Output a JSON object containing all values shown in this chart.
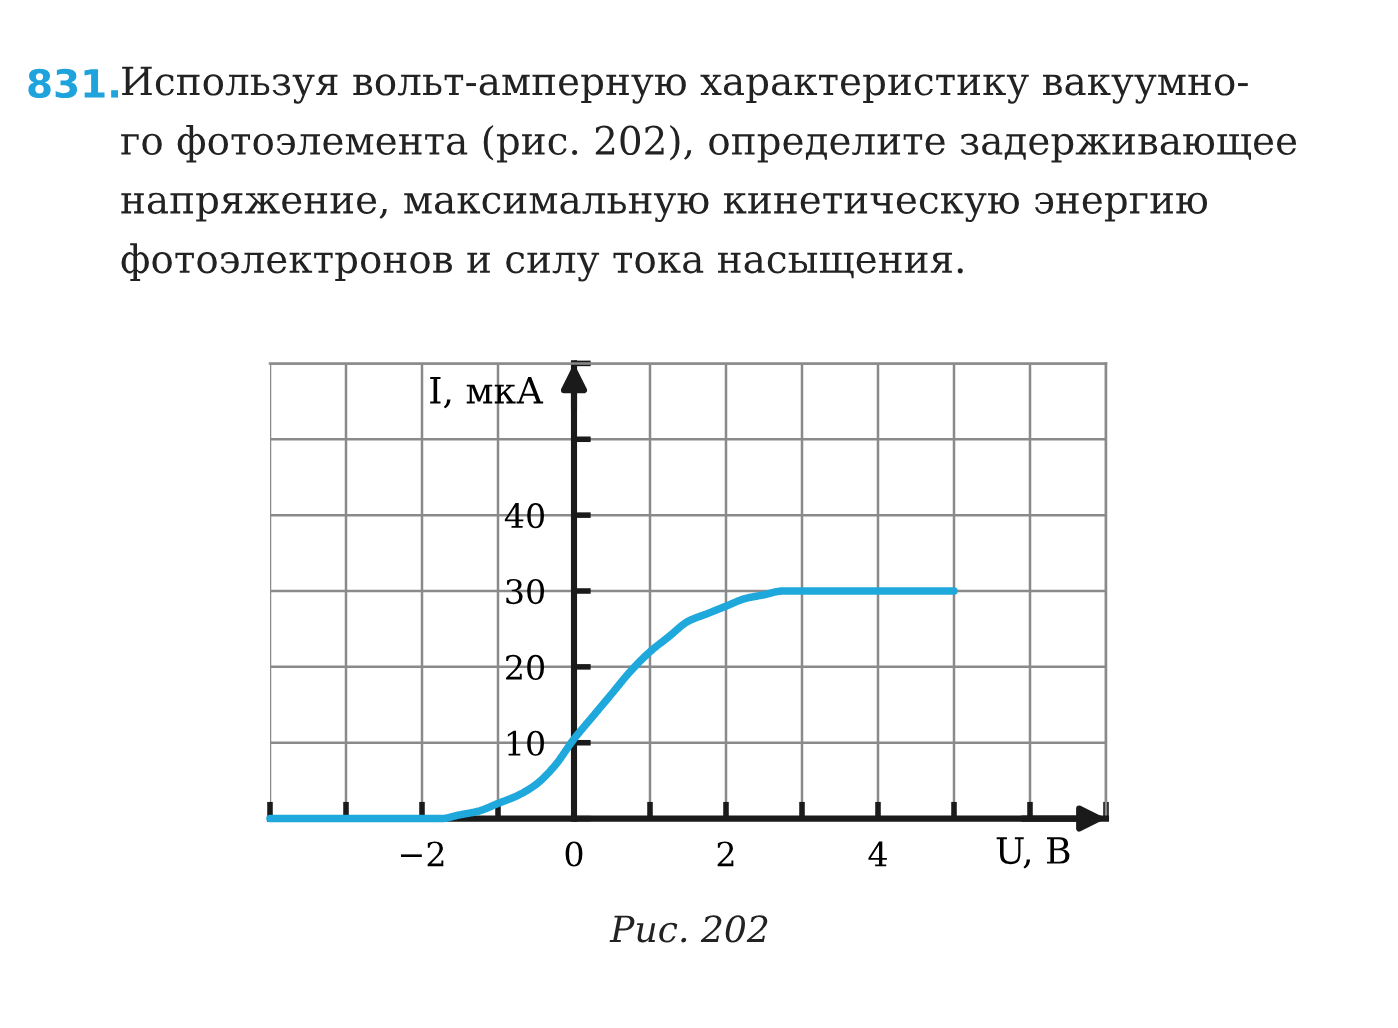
{
  "chart_data": {
    "type": "line",
    "title": "Используя вольт-амперную характеристику вакуумно-\nго фотоэлемента (рис. 202), определите задерживающее\nнапряжение, максимальную кинетическую энергию\nфотоэлектронов и силу тока насыщения.",
    "xlabel": "U, В",
    "ylabel": "I, мкА",
    "annotations": [
      "831.",
      "Рис. 202"
    ],
    "x": [
      -4,
      -3,
      -2.5,
      -2,
      -1.75,
      -1.5,
      -1.25,
      -1,
      -0.75,
      -0.5,
      -0.25,
      0,
      0.25,
      0.5,
      0.75,
      1,
      1.25,
      1.5,
      1.75,
      2,
      2.25,
      2.5,
      2.75,
      3,
      3.5,
      4,
      4.5,
      5
    ],
    "values": [
      0,
      0,
      0,
      0,
      0,
      0.5,
      1,
      2,
      3,
      4.5,
      7,
      10.5,
      13.5,
      16.5,
      19.5,
      22,
      24,
      26,
      27,
      28,
      29,
      29.5,
      30,
      30,
      30,
      30,
      30,
      30
    ],
    "color": "#1ea8dc",
    "xlim": [
      -4,
      7
    ],
    "ylim": [
      0,
      60
    ],
    "xticks": [
      {
        "value": -4,
        "label": null
      },
      {
        "value": -3,
        "label": null
      },
      -2,
      {
        "value": -1,
        "label": null
      },
      0,
      {
        "value": 1,
        "label": null
      },
      2,
      {
        "value": 3,
        "label": null
      },
      4,
      {
        "value": 5,
        "label": null
      },
      {
        "value": 6,
        "label": null
      },
      {
        "value": 7,
        "label": null
      }
    ],
    "yticks": [
      {
        "value": 0,
        "label": null
      },
      10,
      20,
      30,
      40,
      {
        "value": 50,
        "label": null
      },
      {
        "value": 60,
        "label": null
      }
    ],
    "grid": true
  }
}
